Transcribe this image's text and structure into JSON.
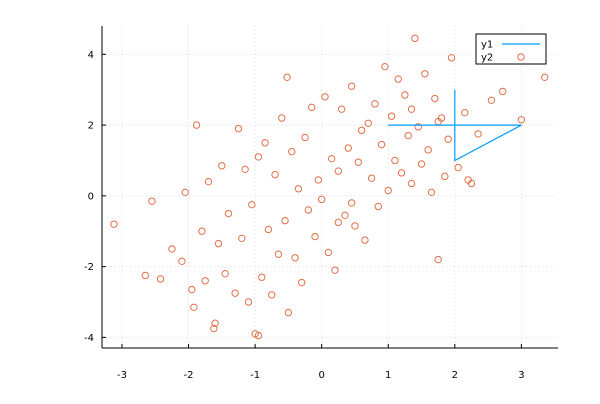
{
  "chart_data": {
    "type": "scatter",
    "title": "",
    "xlabel": "",
    "ylabel": "",
    "xlim": [
      -3.3,
      3.55
    ],
    "ylim": [
      -4.3,
      4.8
    ],
    "grid": true,
    "legend_position": "top-right",
    "x_ticks": [
      -3,
      -2,
      -1,
      0,
      1,
      2,
      3
    ],
    "y_ticks": [
      -4,
      -2,
      0,
      2,
      4
    ],
    "x_tick_labels": [
      "-3",
      "-2",
      "-1",
      "0",
      "1",
      "2",
      "3"
    ],
    "y_tick_labels": [
      "-4",
      "-2",
      "0",
      "2",
      "4"
    ],
    "series": [
      {
        "name": "y1",
        "kind": "line",
        "color": "#009af9",
        "x": [
          1,
          2,
          3,
          2,
          2
        ],
        "y": [
          2,
          2,
          2,
          1,
          3
        ]
      },
      {
        "name": "y2",
        "kind": "scatter",
        "marker": "open-circle",
        "color": "#e26f46",
        "x": [
          -3.12,
          -2.65,
          -2.55,
          -2.42,
          -2.25,
          -2.1,
          -2.05,
          -1.95,
          -1.92,
          -1.8,
          -1.75,
          -1.7,
          -1.6,
          -1.55,
          -1.5,
          -1.45,
          -1.4,
          -1.3,
          -1.25,
          -1.2,
          -1.15,
          -1.1,
          -1.05,
          -1.0,
          -0.95,
          -0.9,
          -0.85,
          -0.8,
          -0.75,
          -0.7,
          -0.65,
          -0.6,
          -0.55,
          -0.5,
          -0.45,
          -0.4,
          -0.35,
          -0.3,
          -0.25,
          -0.2,
          -0.15,
          -0.1,
          -0.05,
          0.0,
          0.05,
          0.1,
          0.15,
          0.2,
          0.25,
          0.3,
          0.35,
          0.4,
          0.45,
          0.5,
          0.55,
          0.6,
          0.65,
          0.7,
          0.75,
          0.8,
          0.85,
          0.9,
          0.95,
          1.0,
          1.05,
          1.1,
          1.15,
          1.2,
          1.25,
          1.3,
          1.35,
          1.4,
          1.45,
          1.5,
          1.55,
          1.6,
          1.65,
          1.7,
          1.75,
          1.8,
          1.85,
          1.9,
          1.95,
          2.05,
          2.15,
          2.2,
          2.35,
          2.55,
          2.72,
          3.0,
          3.35,
          -1.88,
          -1.62,
          -0.52,
          0.45,
          1.35,
          -0.95,
          0.25,
          1.75,
          2.25
        ],
        "y": [
          -0.8,
          -2.25,
          -0.15,
          -2.35,
          -1.5,
          -1.85,
          0.1,
          -2.65,
          -3.15,
          -1.0,
          -2.4,
          0.4,
          -3.6,
          -1.35,
          0.85,
          -2.2,
          -0.5,
          -2.75,
          1.9,
          -1.2,
          0.75,
          -3.0,
          -0.25,
          -3.9,
          1.1,
          -2.3,
          1.5,
          -0.95,
          -2.8,
          0.6,
          -1.65,
          2.2,
          -0.7,
          -3.3,
          1.25,
          -1.75,
          0.2,
          -2.45,
          1.65,
          -0.4,
          2.5,
          -1.15,
          0.45,
          -0.1,
          2.8,
          -1.6,
          1.05,
          -2.1,
          0.7,
          2.45,
          -0.55,
          1.35,
          3.1,
          -0.85,
          0.95,
          1.85,
          -1.25,
          2.05,
          0.5,
          2.6,
          -0.3,
          1.45,
          3.65,
          0.15,
          2.25,
          1.0,
          3.3,
          0.65,
          2.85,
          1.7,
          0.35,
          4.45,
          1.95,
          0.9,
          3.45,
          1.3,
          0.1,
          2.75,
          -1.8,
          2.2,
          0.55,
          1.6,
          3.9,
          0.8,
          2.35,
          0.45,
          1.75,
          2.7,
          2.95,
          2.15,
          3.35,
          2.0,
          -3.75,
          3.35,
          -0.2,
          2.45,
          -3.95,
          -0.75,
          2.1,
          0.35
        ]
      }
    ]
  },
  "legend": {
    "entries": [
      {
        "label": "y1",
        "color": "#009af9",
        "symbol": "line"
      },
      {
        "label": "y2",
        "color": "#e26f46",
        "symbol": "open-circle"
      }
    ]
  }
}
